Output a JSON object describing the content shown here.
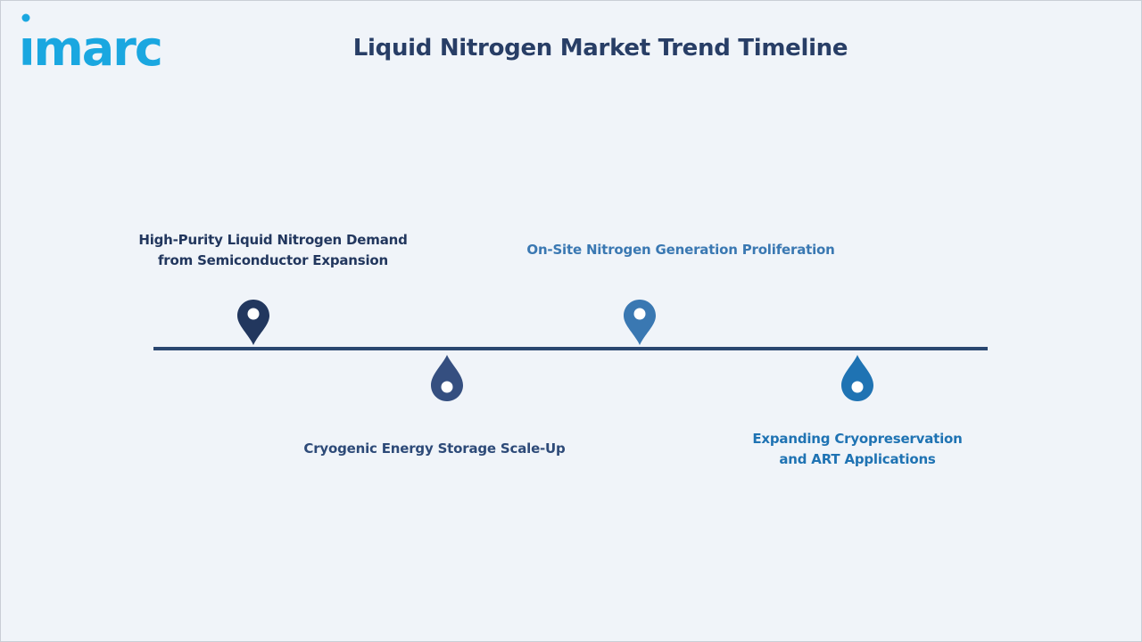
{
  "header": {
    "logo_text": "imarc",
    "title": "Liquid Nitrogen Market Trend Timeline"
  },
  "colors": {
    "background": "#f0f4f9",
    "title": "#283e66",
    "timeline_line": "#2a4770",
    "logo": "#1aa7e0"
  },
  "timeline": {
    "items": [
      {
        "lines": [
          "High-Purity Liquid Nitrogen Demand",
          "from Semiconductor Expansion"
        ],
        "icon": "map-pin-icon",
        "position": "above",
        "color": "#22375e"
      },
      {
        "lines": [
          "Cryogenic Energy Storage Scale-Up"
        ],
        "icon": "droplet-icon",
        "position": "below",
        "color": "#354f80"
      },
      {
        "lines": [
          "On-Site Nitrogen Generation Proliferation"
        ],
        "icon": "map-pin-icon",
        "position": "above",
        "color": "#3a78b2"
      },
      {
        "lines": [
          "Expanding Cryopreservation",
          "and ART Applications"
        ],
        "icon": "droplet-icon",
        "position": "below",
        "color": "#1f73b3"
      }
    ]
  }
}
